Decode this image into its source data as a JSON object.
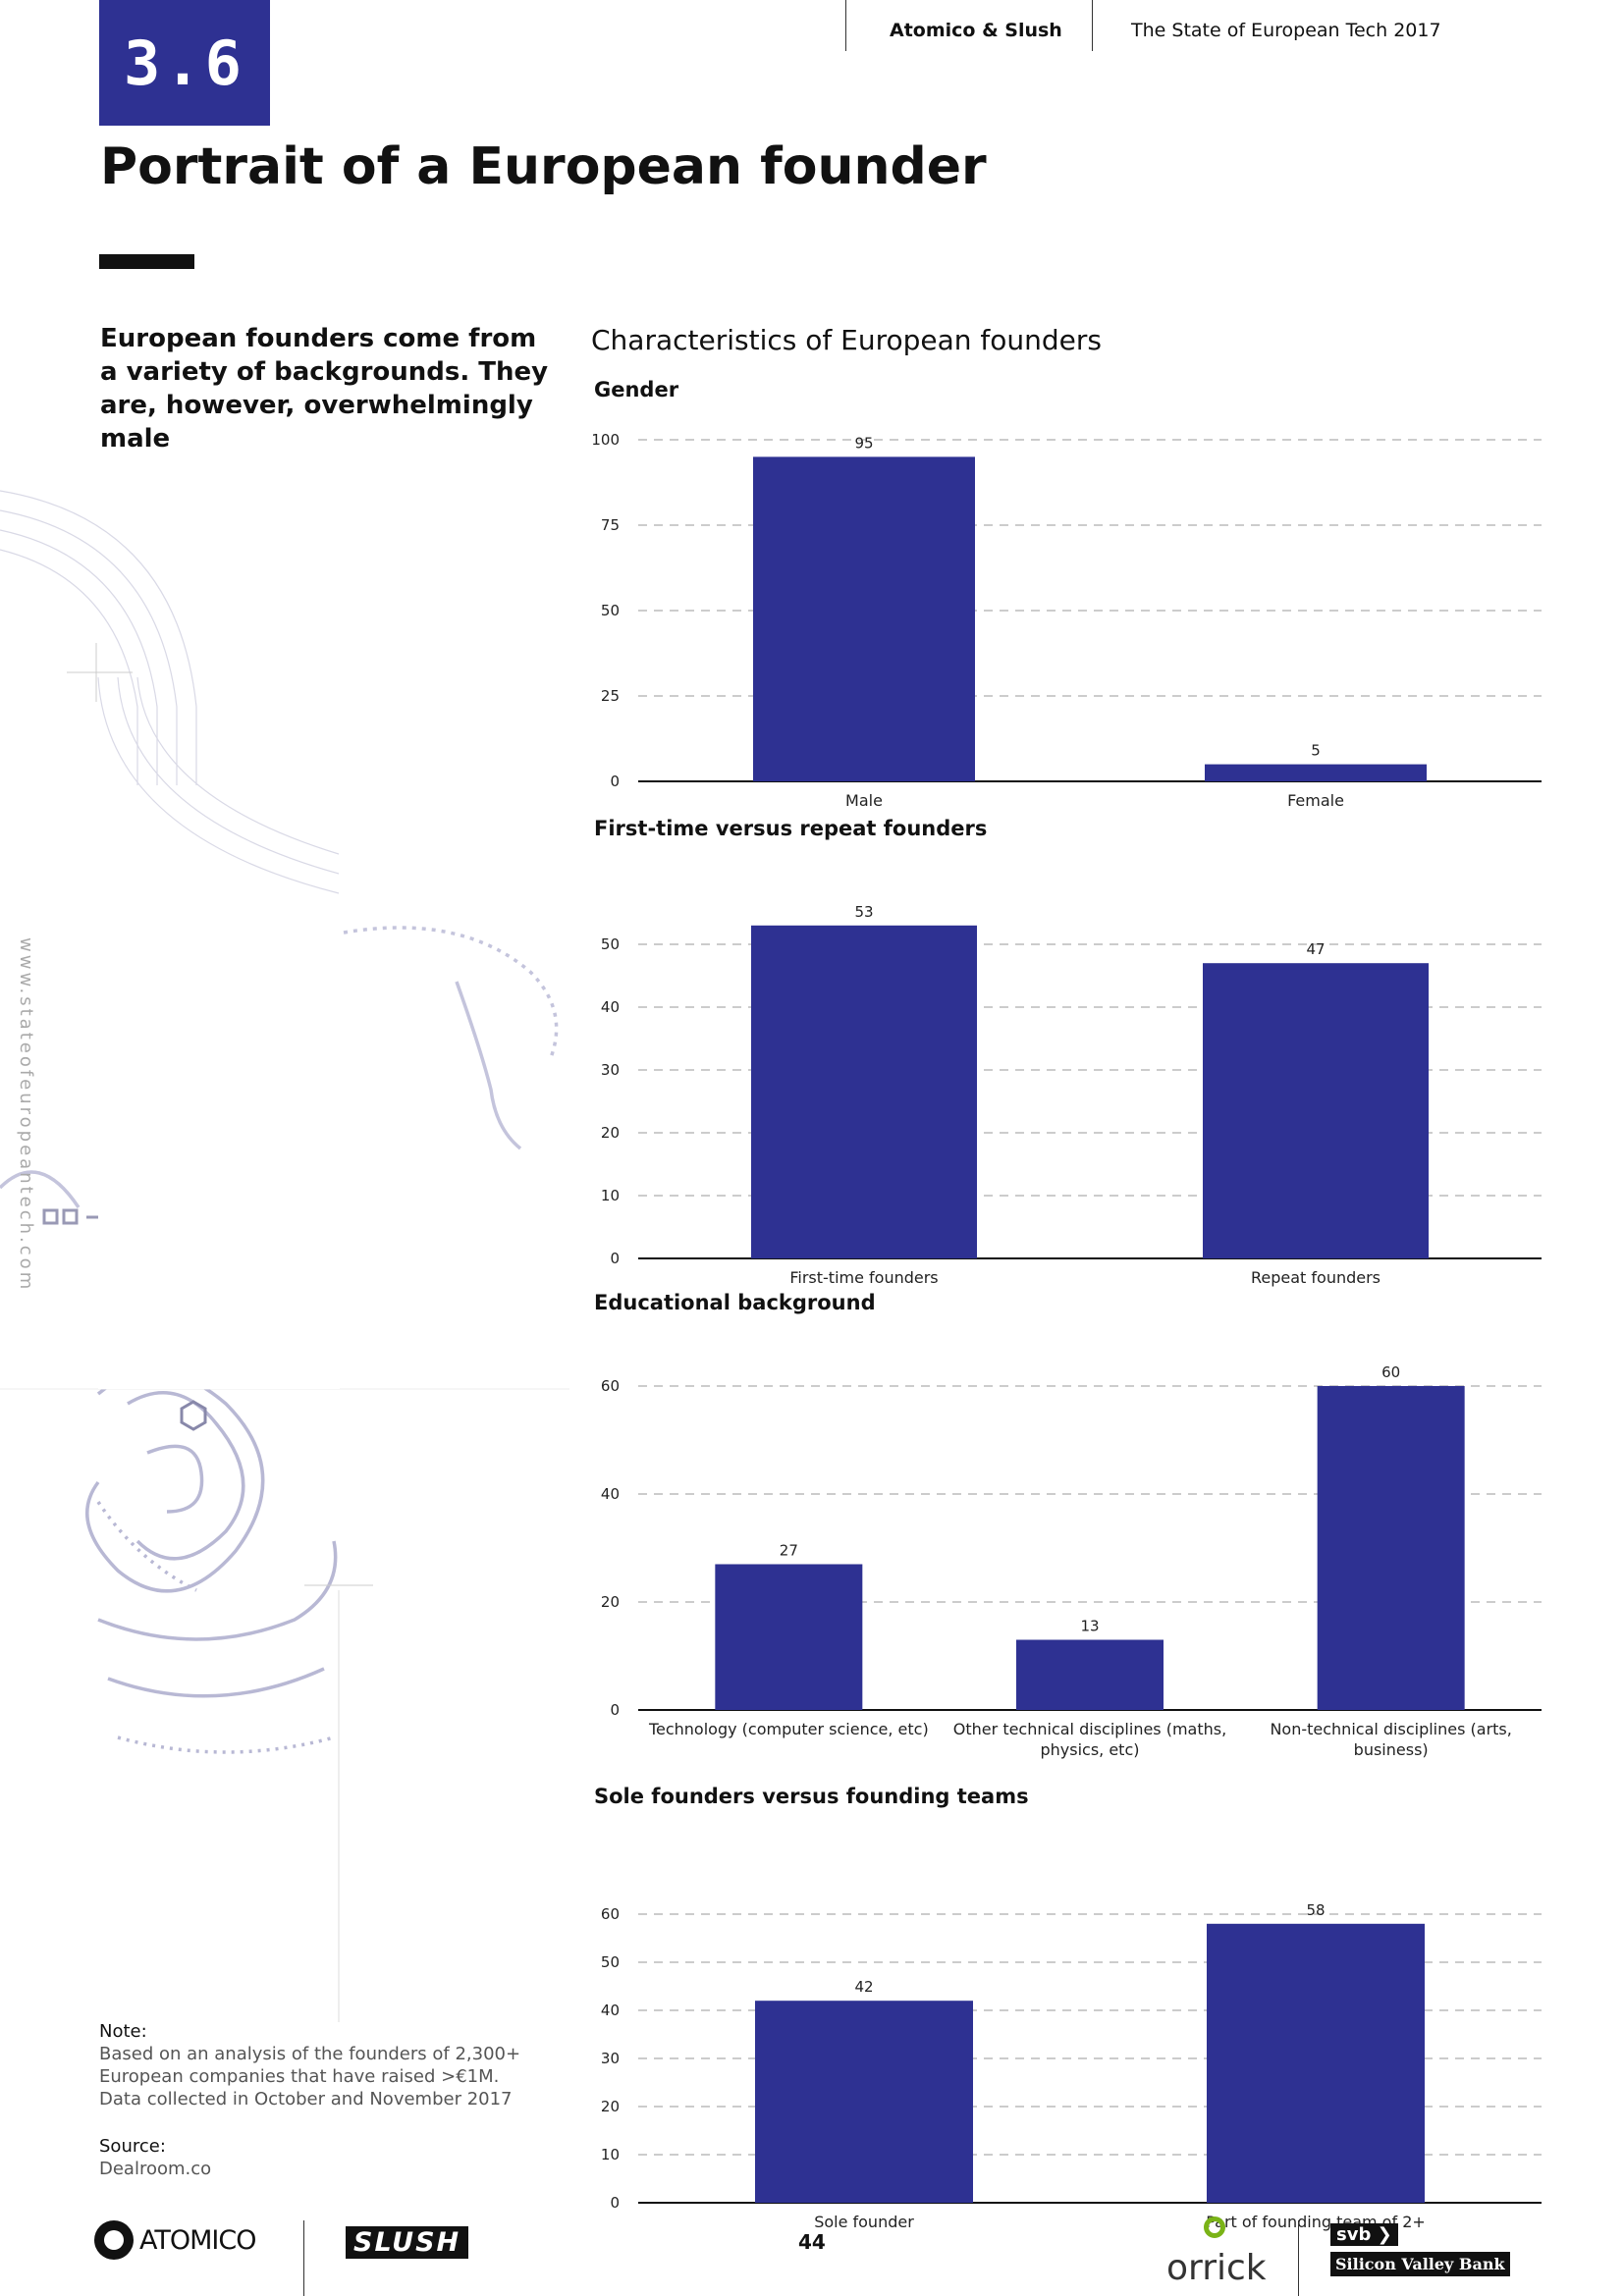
{
  "header": {
    "section_number": "3.6",
    "page_title": "Portrait of a European founder",
    "publisher": "Atomico & Slush",
    "report_title": "The State of European Tech 2017"
  },
  "intro": {
    "text": "European founders come from a variety of backgrounds. They are, however, overwhelmingly male"
  },
  "charts_heading": "Characteristics of European founders",
  "side_url": "www.stateofeuropeantech.com",
  "chart_data": [
    {
      "type": "bar",
      "title": "Gender",
      "categories": [
        "Male",
        "Female"
      ],
      "values": [
        95,
        5
      ],
      "ylim": [
        0,
        100
      ],
      "yticks": [
        0,
        25,
        50,
        75,
        100
      ],
      "xlabel": "",
      "ylabel": "",
      "grid": true,
      "color": "#2e3192"
    },
    {
      "type": "bar",
      "title": "First-time versus repeat founders",
      "categories": [
        "First-time founders",
        "Repeat founders"
      ],
      "values": [
        53,
        47
      ],
      "ylim": [
        0,
        55
      ],
      "yticks": [
        0,
        10,
        20,
        30,
        40,
        50
      ],
      "xlabel": "",
      "ylabel": "",
      "grid": true,
      "color": "#2e3192"
    },
    {
      "type": "bar",
      "title": "Educational background",
      "categories": [
        [
          "Technology (computer science, etc)"
        ],
        [
          "Other technical disciplines (maths,",
          "physics, etc)"
        ],
        [
          "Non-technical disciplines (arts,",
          "business)"
        ]
      ],
      "values": [
        27,
        13,
        60
      ],
      "ylim": [
        0,
        60
      ],
      "yticks": [
        0,
        20,
        40,
        60
      ],
      "xlabel": "",
      "ylabel": "",
      "grid": true,
      "color": "#2e3192"
    },
    {
      "type": "bar",
      "title": "Sole founders versus founding teams",
      "categories": [
        "Sole founder",
        "Part of founding team of 2+"
      ],
      "values": [
        42,
        58
      ],
      "ylim": [
        0,
        60
      ],
      "yticks": [
        0,
        10,
        20,
        30,
        40,
        50,
        60
      ],
      "xlabel": "",
      "ylabel": "",
      "grid": true,
      "color": "#2e3192"
    }
  ],
  "note": {
    "label": "Note:",
    "lines": [
      "Based on an analysis of the founders of 2,300+",
      "European companies that have raised >€1M.",
      "Data collected in October and November 2017"
    ]
  },
  "source": {
    "label": "Source:",
    "value": "Dealroom.co"
  },
  "footer": {
    "page_number": "44",
    "atomico": "ATOMICO",
    "slush": "SLUSH",
    "orrick": "orrick",
    "svb_mark": "svb",
    "svb_name": "Silicon Valley Bank"
  }
}
